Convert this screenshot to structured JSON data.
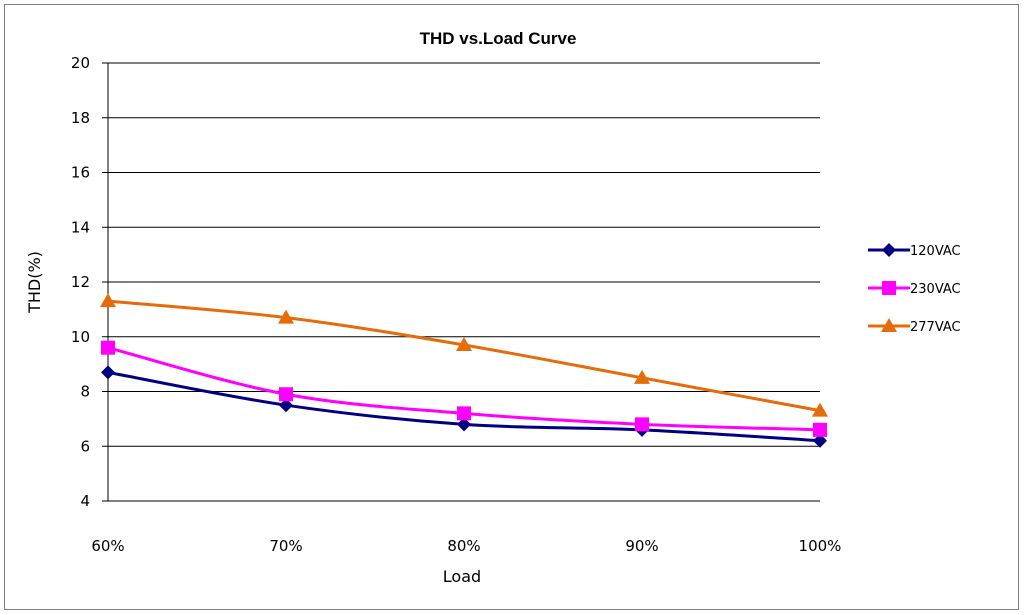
{
  "chart_data": {
    "type": "line",
    "title": "THD vs.Load Curve",
    "xlabel": "Load",
    "ylabel": "THD(%)",
    "categories": [
      "60%",
      "70%",
      "80%",
      "90%",
      "100%"
    ],
    "ylim": [
      4,
      20
    ],
    "yticks": [
      "4",
      "6",
      "8",
      "10",
      "12",
      "14",
      "16",
      "18",
      "20"
    ],
    "grid": "horizontal",
    "legend_position": "right",
    "series": [
      {
        "name": "120VAC",
        "color": "#000080",
        "marker": "diamond",
        "values": [
          8.7,
          7.5,
          6.8,
          6.6,
          6.2
        ]
      },
      {
        "name": "230VAC",
        "color": "#ff00ff",
        "marker": "square",
        "values": [
          9.6,
          7.9,
          7.2,
          6.8,
          6.6
        ]
      },
      {
        "name": "277VAC",
        "color": "#e46c0a",
        "marker": "triangle",
        "values": [
          11.3,
          10.7,
          9.7,
          8.5,
          7.3
        ]
      }
    ]
  }
}
